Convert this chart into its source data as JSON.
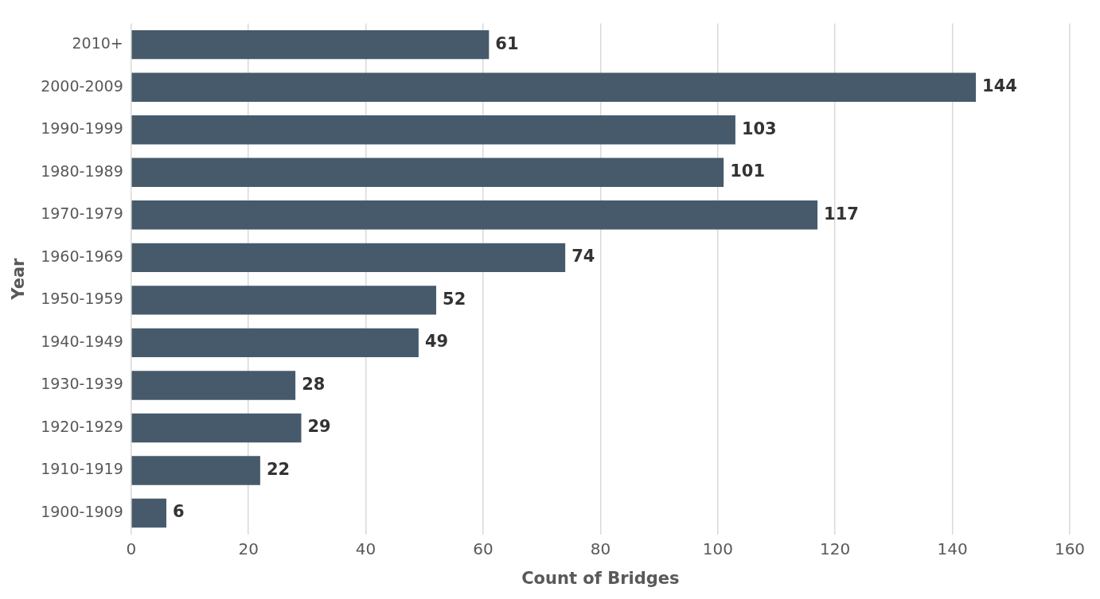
{
  "chart_data": {
    "type": "bar",
    "orientation": "horizontal",
    "xlabel": "Count of Bridges",
    "ylabel": "Year",
    "categories": [
      "2010+",
      "2000-2009",
      "1990-1999",
      "1980-1989",
      "1970-1979",
      "1960-1969",
      "1950-1959",
      "1940-1949",
      "1930-1939",
      "1920-1929",
      "1910-1919",
      "1900-1909"
    ],
    "values": [
      61,
      144,
      103,
      101,
      117,
      74,
      52,
      49,
      28,
      29,
      22,
      6
    ],
    "color": "#465a6b",
    "xlim": [
      0,
      160
    ],
    "xticks": [
      0,
      20,
      40,
      60,
      80,
      100,
      120,
      140,
      160
    ],
    "grid": "x",
    "legend": false,
    "data_labels": true
  }
}
